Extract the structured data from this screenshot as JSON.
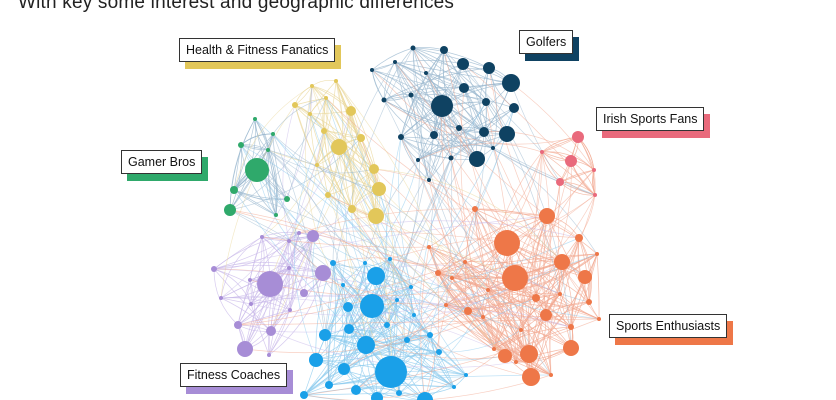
{
  "subtitle": "With key some interest and geographic differences",
  "colors": {
    "health_fitness": "#E2C75A",
    "golfers": "#0F4262",
    "irish": "#E96A7C",
    "gamer": "#2FA96B",
    "sports": "#EE7748",
    "fitness_coaches": "#A78DD6",
    "blue": "#1AA0E8",
    "edge": "#9BB8CF"
  },
  "clusters": [
    {
      "key": "health_fitness",
      "label": "Health & Fitness Fanatics",
      "color": "#E2C75A"
    },
    {
      "key": "golfers",
      "label": "Golfers",
      "color": "#0F4262"
    },
    {
      "key": "irish",
      "label": "Irish Sports Fans",
      "color": "#E96A7C"
    },
    {
      "key": "gamer",
      "label": "Gamer Bros",
      "color": "#2FA96B"
    },
    {
      "key": "sports",
      "label": "Sports Enthusiasts",
      "color": "#EE7748"
    },
    {
      "key": "fitness_coaches",
      "label": "Fitness Coaches",
      "color": "#A78DD6"
    }
  ]
}
